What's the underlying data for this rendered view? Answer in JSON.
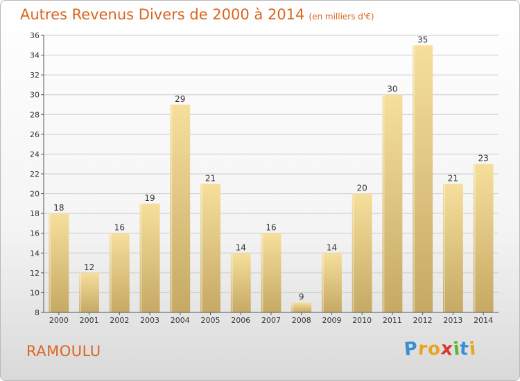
{
  "title": "Autres Revenus Divers de 2000 à 2014",
  "subtitle": "(en milliers d'€)",
  "commune": "RAMOULU",
  "logo": {
    "letters": [
      "P",
      "r",
      "o",
      "x",
      "i",
      "t",
      "i"
    ],
    "colors": [
      "#3b8fd1",
      "#e8a51f",
      "#e8a51f",
      "#d8392b",
      "#58b530",
      "#3b8fd1",
      "#e8a51f"
    ]
  },
  "colors": {
    "title": "#d9651f",
    "bar_light": "#f6df9c",
    "bar_dark": "#c5a964",
    "axis": "#555555",
    "grid": "#cccccc"
  },
  "chart_data": {
    "type": "bar",
    "categories": [
      "2000",
      "2001",
      "2002",
      "2003",
      "2004",
      "2005",
      "2006",
      "2007",
      "2008",
      "2009",
      "2010",
      "2011",
      "2012",
      "2013",
      "2014"
    ],
    "values": [
      18,
      12,
      16,
      19,
      29,
      21,
      14,
      16,
      9,
      14,
      20,
      30,
      35,
      21,
      23
    ],
    "ylim": [
      8,
      36
    ],
    "yticks": [
      8,
      10,
      12,
      14,
      16,
      18,
      20,
      22,
      24,
      26,
      28,
      30,
      32,
      34,
      36
    ],
    "grid": true,
    "data_labels": true
  }
}
